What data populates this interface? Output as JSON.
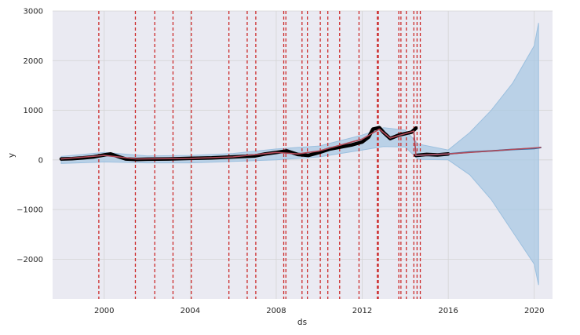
{
  "chart_data": {
    "type": "line",
    "title": "",
    "xlabel": "ds",
    "ylabel": "y",
    "xlim": [
      1997.6,
      2020.85
    ],
    "ylim": [
      -2800,
      3000
    ],
    "x_ticks": [
      2000,
      2004,
      2008,
      2012,
      2016,
      2020
    ],
    "x_tick_labels": [
      "2000",
      "2004",
      "2008",
      "2012",
      "2016",
      "2020"
    ],
    "y_ticks": [
      -2000,
      -1000,
      0,
      1000,
      2000,
      3000
    ],
    "y_tick_labels": [
      "−2000",
      "−1000",
      "0",
      "1000",
      "2000",
      "3000"
    ],
    "grid": true,
    "colors": {
      "background": "#eaeaf2",
      "grid": "#d4d4d4",
      "observed": "#000000",
      "forecast": "#2d6ea8",
      "uncertainty": "#aac8e3",
      "trend": "#b24a58",
      "changepoint": "#cc2b2b"
    },
    "uncertainty_band": {
      "x": [
        1998.0,
        2000.0,
        2002.0,
        2004.0,
        2006.0,
        2008.0,
        2010.0,
        2012.0,
        2013.0,
        2014.0,
        2014.6,
        2016.0,
        2017.0,
        2018.0,
        2019.0,
        2020.0,
        2020.2
      ],
      "upper": [
        70,
        150,
        80,
        90,
        130,
        220,
        280,
        500,
        650,
        600,
        320,
        200,
        550,
        1000,
        1550,
        2300,
        2760
      ],
      "lower": [
        -70,
        -40,
        -60,
        -60,
        -30,
        0,
        60,
        200,
        270,
        260,
        10,
        0,
        -300,
        -800,
        -1450,
        -2100,
        -2520
      ]
    },
    "series": [
      {
        "x": [
          1998.0,
          1998.5,
          1999.0,
          1999.5,
          2000.0,
          2000.3,
          2000.7,
          2001.0,
          2001.5,
          2002.0,
          2003.0,
          2004.0,
          2005.0,
          2006.0,
          2007.0,
          2007.5,
          2008.0,
          2008.5,
          2009.0,
          2009.5,
          2010.0,
          2010.5,
          2011.0,
          2011.5,
          2012.0,
          2012.3,
          2012.5,
          2012.8,
          2013.0,
          2013.3,
          2013.7,
          2014.0,
          2014.3,
          2014.5
        ],
        "values": [
          20,
          25,
          40,
          60,
          100,
          120,
          60,
          20,
          10,
          15,
          20,
          30,
          40,
          60,
          80,
          120,
          150,
          180,
          110,
          90,
          150,
          220,
          260,
          300,
          360,
          460,
          620,
          650,
          550,
          430,
          500,
          530,
          560,
          640
        ]
      },
      {
        "x": [
          2014.5,
          2015.0,
          2015.5,
          2016.0
        ],
        "values": [
          90,
          110,
          100,
          120
        ]
      },
      {
        "x": [
          2014.5,
          2016.0,
          2017.0,
          2018.0,
          2019.0,
          2020.0,
          2020.3
        ],
        "values": [
          90,
          120,
          160,
          180,
          210,
          230,
          250
        ]
      },
      {
        "x": [
          1998.0,
          2000.0,
          2001.5,
          2004.0,
          2006.0,
          2008.0,
          2009.0,
          2010.0,
          2012.0,
          2012.8,
          2013.3,
          2014.4,
          2014.5,
          2016.0,
          2020.3
        ],
        "values": [
          20,
          90,
          20,
          30,
          60,
          150,
          120,
          180,
          420,
          620,
          440,
          580,
          90,
          120,
          250
        ]
      }
    ],
    "changepoints": [
      1999.75,
      2001.45,
      2002.35,
      2003.2,
      2004.05,
      2005.8,
      2006.65,
      2007.05,
      2008.35,
      2008.45,
      2009.2,
      2009.45,
      2010.05,
      2010.4,
      2010.95,
      2011.85,
      2012.7,
      2012.75,
      2013.7,
      2013.8,
      2014.05,
      2014.4,
      2014.55,
      2014.7
    ]
  }
}
